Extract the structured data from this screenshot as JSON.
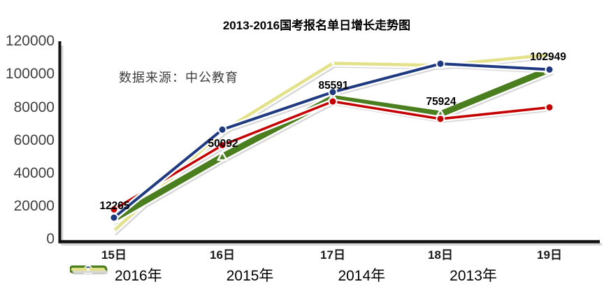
{
  "title": "2013-2016国考报名单日增长走势图",
  "source_note": "数据来源：中公教育",
  "colors": {
    "green": "#4a7e1e",
    "red": "#c40000",
    "blue": "#1f3a80",
    "yellow": "#e3e189",
    "shadow": "#d8d8d8",
    "axis": "#111111",
    "tick_text": "#404040"
  },
  "chart_data": {
    "type": "line",
    "categories": [
      "15日",
      "16日",
      "17日",
      "18日",
      "19日"
    ],
    "y_ticks": [
      120000,
      100000,
      80000,
      60000,
      40000,
      20000,
      0
    ],
    "ylim": [
      0,
      120000
    ],
    "grid": false,
    "legend_position": "bottom",
    "series": [
      {
        "name": "2013年",
        "color": "yellow",
        "marker": "small-white-dot",
        "values": [
          5000,
          65500,
          106800,
          105500,
          112000
        ]
      },
      {
        "name": "2016年",
        "color": "green",
        "marker": "white-triangle",
        "labeled": true,
        "values": [
          12265,
          50092,
          85591,
          75924,
          102949
        ]
      },
      {
        "name": "2015年",
        "color": "red",
        "marker": "dot",
        "values": [
          18000,
          57000,
          83600,
          73000,
          80000
        ]
      },
      {
        "name": "2014年",
        "color": "blue",
        "marker": "dot",
        "values": [
          13000,
          66500,
          89300,
          106500,
          103000
        ]
      }
    ],
    "point_labels": [
      "12265",
      "50092",
      "85591",
      "75924",
      "102949"
    ]
  },
  "legend": {
    "items": [
      {
        "label": "2016年",
        "color": "green"
      },
      {
        "label": "2015年",
        "color": "red"
      },
      {
        "label": "2014年",
        "color": "blue"
      },
      {
        "label": "2013年",
        "color": "yellow"
      }
    ]
  }
}
